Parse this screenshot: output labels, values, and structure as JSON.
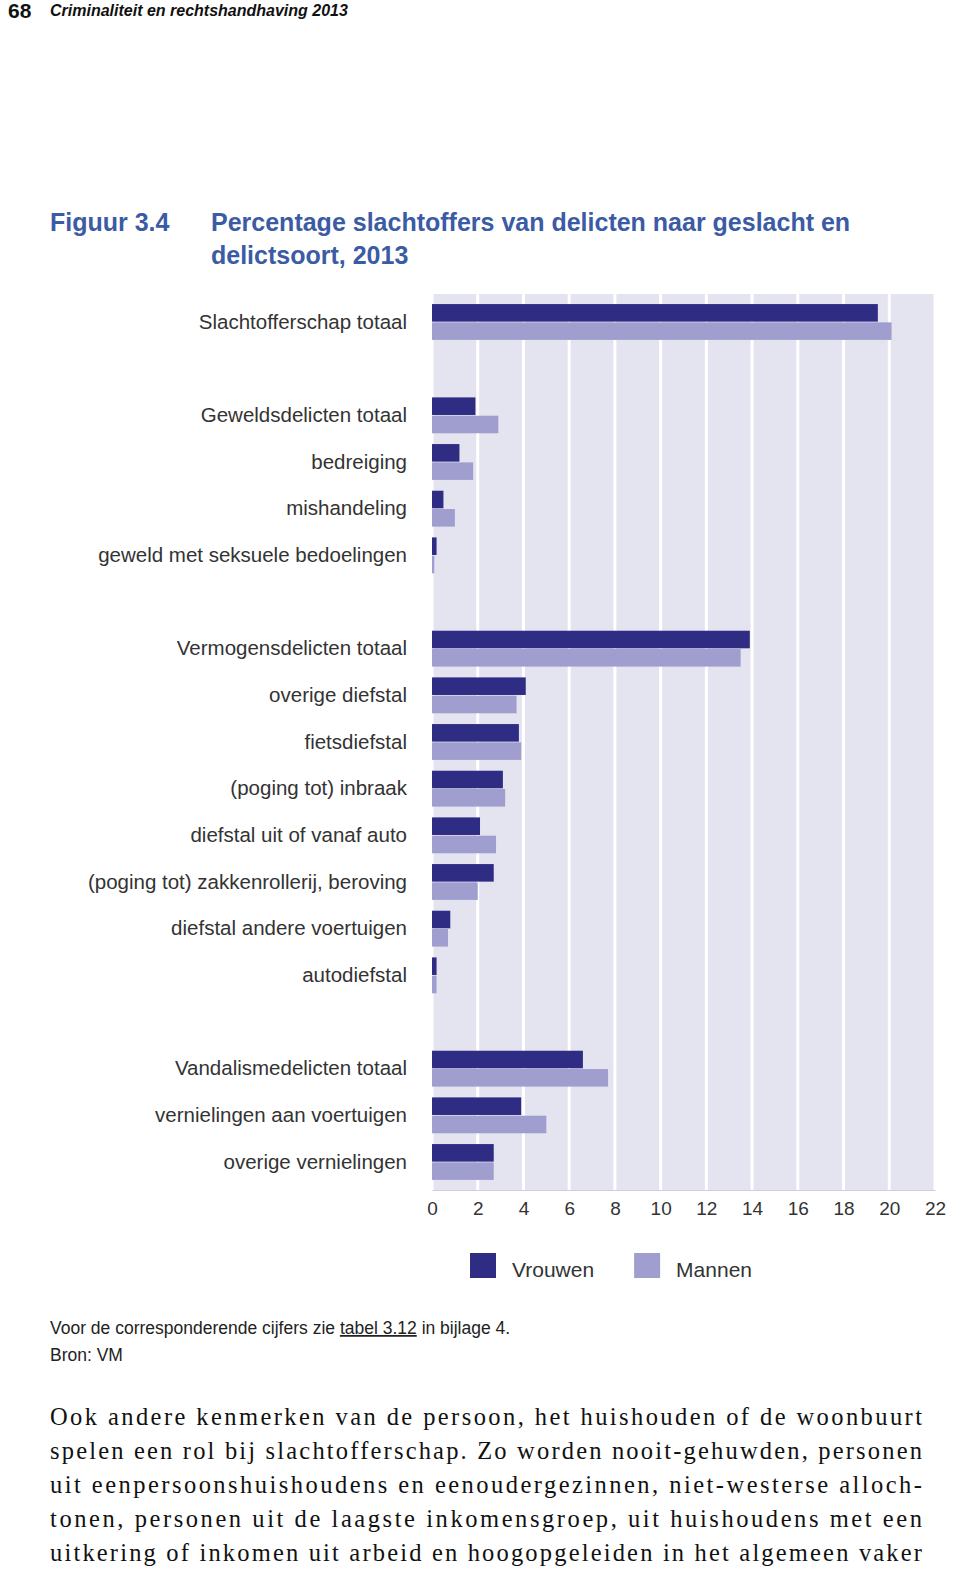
{
  "chart_data": {
    "type": "bar",
    "orientation": "horizontal",
    "title": "Percentage slachtoffers van delicten naar geslacht en delictsoort, 2013",
    "categories": [
      "Slachtofferschap totaal",
      null,
      "Geweldsdelicten totaal",
      "bedreiging",
      "mishandeling",
      "geweld met seksuele bedoelingen",
      null,
      "Vermogensdelicten totaal",
      "overige diefstal",
      "fietsdiefstal",
      "(poging tot) inbraak",
      "diefstal uit of vanaf auto",
      "(poging tot) zakkenrollerij, beroving",
      "diefstal andere voertuigen",
      "autodiefstal",
      null,
      "Vandalismedelicten totaal",
      "vernielingen aan voertuigen",
      "overige vernielingen"
    ],
    "series": [
      {
        "name": "Vrouwen",
        "color": "#2f2c84",
        "values": [
          19.5,
          null,
          1.9,
          1.2,
          0.5,
          0.2,
          null,
          13.9,
          4.1,
          3.8,
          3.1,
          2.1,
          2.7,
          0.8,
          0.2,
          null,
          6.6,
          3.9,
          2.7
        ]
      },
      {
        "name": "Mannen",
        "color": "#a09ecf",
        "values": [
          20.1,
          null,
          2.9,
          1.8,
          1.0,
          0.1,
          null,
          13.5,
          3.7,
          3.9,
          3.2,
          2.8,
          2.0,
          0.7,
          0.2,
          null,
          7.7,
          5.0,
          2.7
        ]
      }
    ],
    "xlim": [
      0,
      22
    ],
    "xticks": [
      0,
      2,
      4,
      6,
      8,
      10,
      12,
      14,
      16,
      18,
      20,
      22
    ],
    "grid": true,
    "legend": "bottom"
  },
  "page": {
    "page_number": "68",
    "running_title": "Criminaliteit en rechtshandhaving 2013",
    "figure_label": "Figuur 3.4",
    "note": [
      "Voor de corresponderende cijfers zie ",
      "tabel 3.12",
      " in bijlage 4."
    ],
    "source": "Bron: VM",
    "body_lines": [
      "Ook andere kenmerken van de persoon, het huishouden of de woonbuurt",
      "spelen een rol bij slachtofferschap. Zo worden nooit-gehuwden, personen",
      "uit eenpersoonshuishoudens en eenoudergezinnen, niet-westerse alloch-",
      "tonen, personen uit de laagste inkomensgroep, uit huishoudens met een",
      "uitkering of inkomen uit arbeid en hoogopgeleiden in het algemeen vaker"
    ]
  }
}
